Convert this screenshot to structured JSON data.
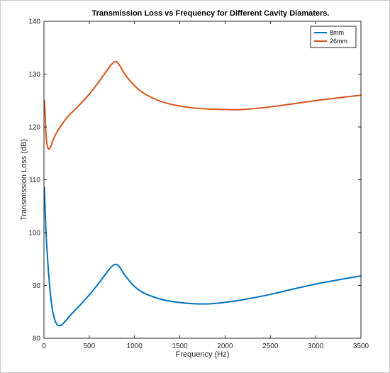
{
  "chart_data": {
    "type": "line",
    "title": "Transmission Loss vs Frequency for Different Cavity Diamaters.",
    "xlabel": "Frequency (Hz)",
    "ylabel": "Transmission Loss (dB)",
    "xlim": [
      0,
      3500
    ],
    "ylim": [
      80,
      140
    ],
    "xticks": [
      0,
      500,
      1000,
      1500,
      2000,
      2500,
      3000,
      3500
    ],
    "yticks": [
      80,
      90,
      100,
      110,
      120,
      130,
      140
    ],
    "grid": false,
    "legend_position": "top-right",
    "series": [
      {
        "name": "8mm",
        "color": "#0072BD",
        "x": [
          5,
          20,
          40,
          60,
          80,
          100,
          130,
          160,
          200,
          250,
          300,
          400,
          500,
          600,
          700,
          750,
          790,
          830,
          900,
          1000,
          1100,
          1250,
          1400,
          1600,
          1800,
          2000,
          2200,
          2500,
          2800,
          3100,
          3500
        ],
        "y": [
          108.5,
          101,
          95,
          90.5,
          87,
          84.8,
          83,
          82.4,
          82.6,
          83.5,
          84.5,
          86.3,
          88.2,
          90.3,
          92.6,
          93.6,
          94.0,
          93.6,
          91.8,
          89.8,
          88.6,
          87.6,
          87.0,
          86.6,
          86.5,
          86.8,
          87.3,
          88.3,
          89.5,
          90.6,
          91.8
        ]
      },
      {
        "name": "26mm",
        "color": "#D95319",
        "x": [
          5,
          15,
          25,
          40,
          60,
          80,
          100,
          130,
          160,
          200,
          250,
          300,
          400,
          500,
          600,
          700,
          750,
          790,
          830,
          900,
          1000,
          1100,
          1250,
          1400,
          1600,
          1800,
          2000,
          2200,
          2500,
          2800,
          3100,
          3500
        ],
        "y": [
          125,
          121.5,
          118,
          116.2,
          115.8,
          116.5,
          117.5,
          118.6,
          119.5,
          120.5,
          121.7,
          122.6,
          124.3,
          126.2,
          128.4,
          130.8,
          131.9,
          132.4,
          131.8,
          129.8,
          127.8,
          126.4,
          125.1,
          124.3,
          123.7,
          123.4,
          123.3,
          123.3,
          123.8,
          124.5,
          125.2,
          126.0
        ]
      }
    ]
  }
}
